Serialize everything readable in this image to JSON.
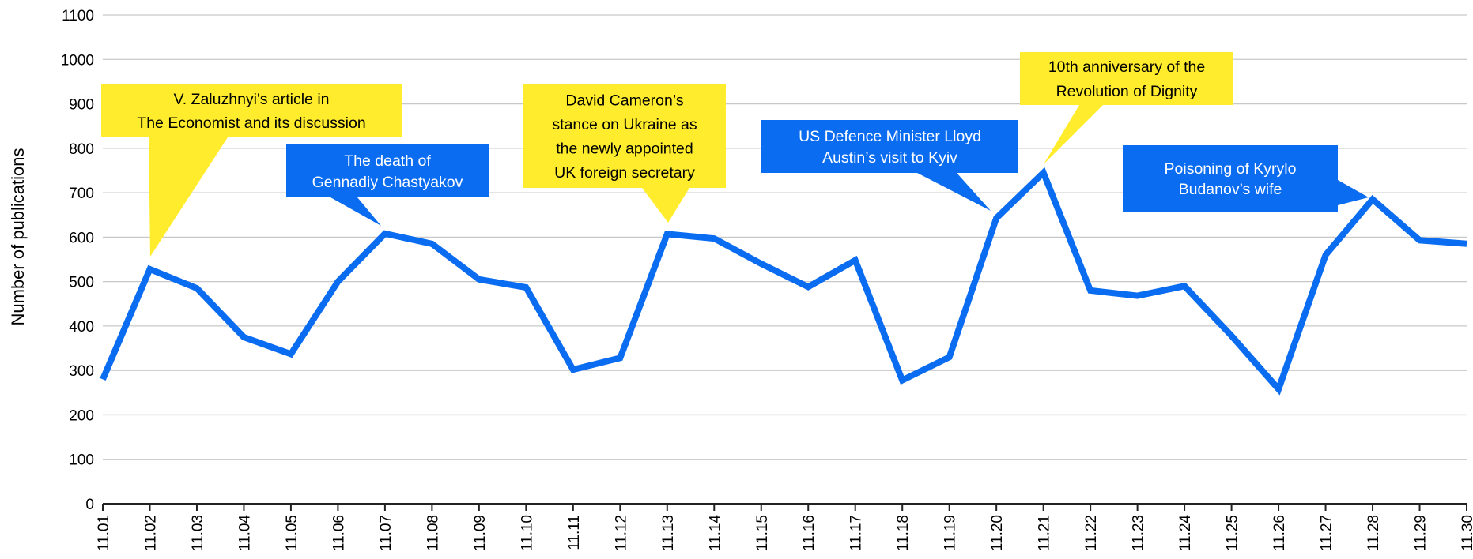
{
  "chart_data": {
    "type": "line",
    "title": "",
    "xlabel": "",
    "ylabel": "Number of publications",
    "ylim": [
      0,
      1100
    ],
    "yticks": [
      0,
      100,
      200,
      300,
      400,
      500,
      600,
      700,
      800,
      900,
      1000,
      1100
    ],
    "grid": true,
    "legend": "none",
    "line_color": "#0a6cf0",
    "categories": [
      "11.01",
      "11.02",
      "11.03",
      "11.04",
      "11.05",
      "11.06",
      "11.07",
      "11.08",
      "11.09",
      "11.10",
      "11.11",
      "11.12",
      "11.13",
      "11.14",
      "11.15",
      "11.16",
      "11.17",
      "11.18",
      "11.19",
      "11.20",
      "11.21",
      "11.22",
      "11.23",
      "11.24",
      "11.25",
      "11.26",
      "11.27",
      "11.28",
      "11.29",
      "11.30"
    ],
    "series": [
      {
        "values": [
          280,
          528,
          485,
          375,
          337,
          500,
          608,
          585,
          505,
          487,
          302,
          328,
          607,
          597,
          540,
          488,
          548,
          278,
          330,
          643,
          745,
          480,
          468,
          490,
          378,
          258,
          560,
          685,
          593,
          585
        ]
      }
    ],
    "annotations": [
      {
        "lines": [
          "V. Zaluzhnyi's article in",
          "The Economist and its discussion"
        ],
        "color": "#ffec2d",
        "text_color": "#000000"
      },
      {
        "lines": [
          "The death of",
          "Gennadiy Chastyakov"
        ],
        "color": "#0a6cf0",
        "text_color": "#ffffff"
      },
      {
        "lines": [
          "David Cameron’s",
          "stance on Ukraine as",
          "the newly appointed",
          "UK foreign secretary"
        ],
        "color": "#ffec2d",
        "text_color": "#000000"
      },
      {
        "lines": [
          "US Defence Minister Lloyd",
          "Austin’s visit to Kyiv"
        ],
        "color": "#0a6cf0",
        "text_color": "#ffffff"
      },
      {
        "lines": [
          "10th anniversary of the",
          "Revolution of Dignity"
        ],
        "color": "#ffec2d",
        "text_color": "#000000"
      },
      {
        "lines": [
          "Poisoning of Kyrylo",
          "Budanov’s wife"
        ],
        "color": "#0a6cf0",
        "text_color": "#ffffff"
      }
    ]
  }
}
